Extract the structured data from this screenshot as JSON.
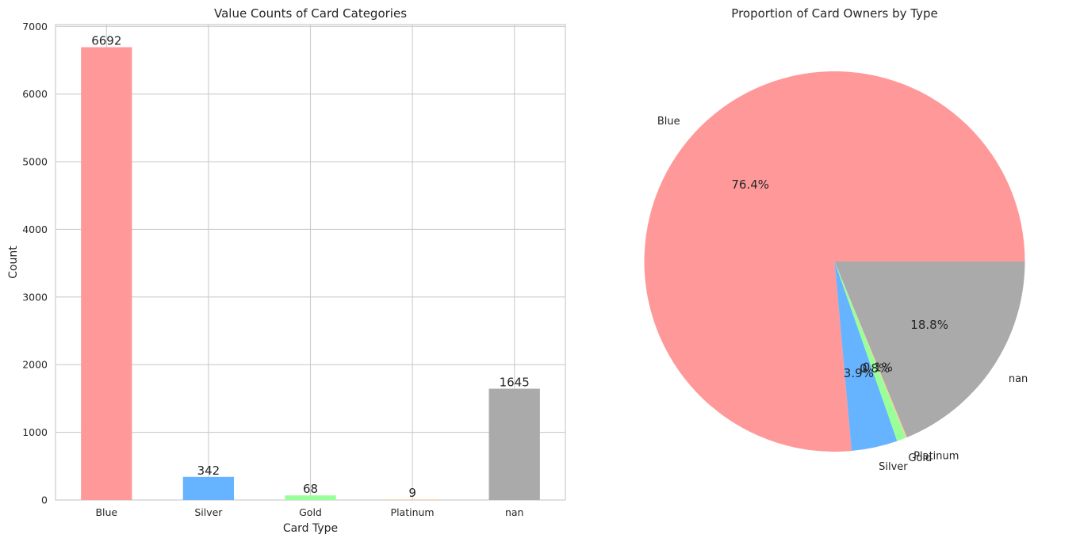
{
  "chart_data": [
    {
      "type": "bar",
      "title": "Value Counts of Card Categories",
      "xlabel": "Card Type",
      "ylabel": "Count",
      "categories": [
        "Blue",
        "Silver",
        "Gold",
        "Platinum",
        "nan"
      ],
      "values": [
        6692,
        342,
        68,
        9,
        1645
      ],
      "data_labels": [
        "6692",
        "342",
        "68",
        "9",
        "1645"
      ],
      "colors": [
        "#ff9999",
        "#66b3ff",
        "#99ff99",
        "#ffcc99",
        "#aaaaaa"
      ],
      "yticks": [
        0,
        1000,
        2000,
        3000,
        4000,
        5000,
        6000,
        7000
      ],
      "ylim": [
        0,
        7026.6
      ],
      "grid": true
    },
    {
      "type": "pie",
      "title": "Proportion of Card Owners by Type",
      "labels": [
        "Blue",
        "Silver",
        "Gold",
        "Platinum",
        "nan"
      ],
      "values": [
        6692,
        342,
        68,
        9,
        1645
      ],
      "pct_labels": [
        "76.4%",
        "3.9%",
        "0.8%",
        "0.1%",
        "18.8%"
      ],
      "colors": [
        "#ff9999",
        "#66b3ff",
        "#99ff99",
        "#ffcc99",
        "#aaaaaa"
      ]
    }
  ]
}
